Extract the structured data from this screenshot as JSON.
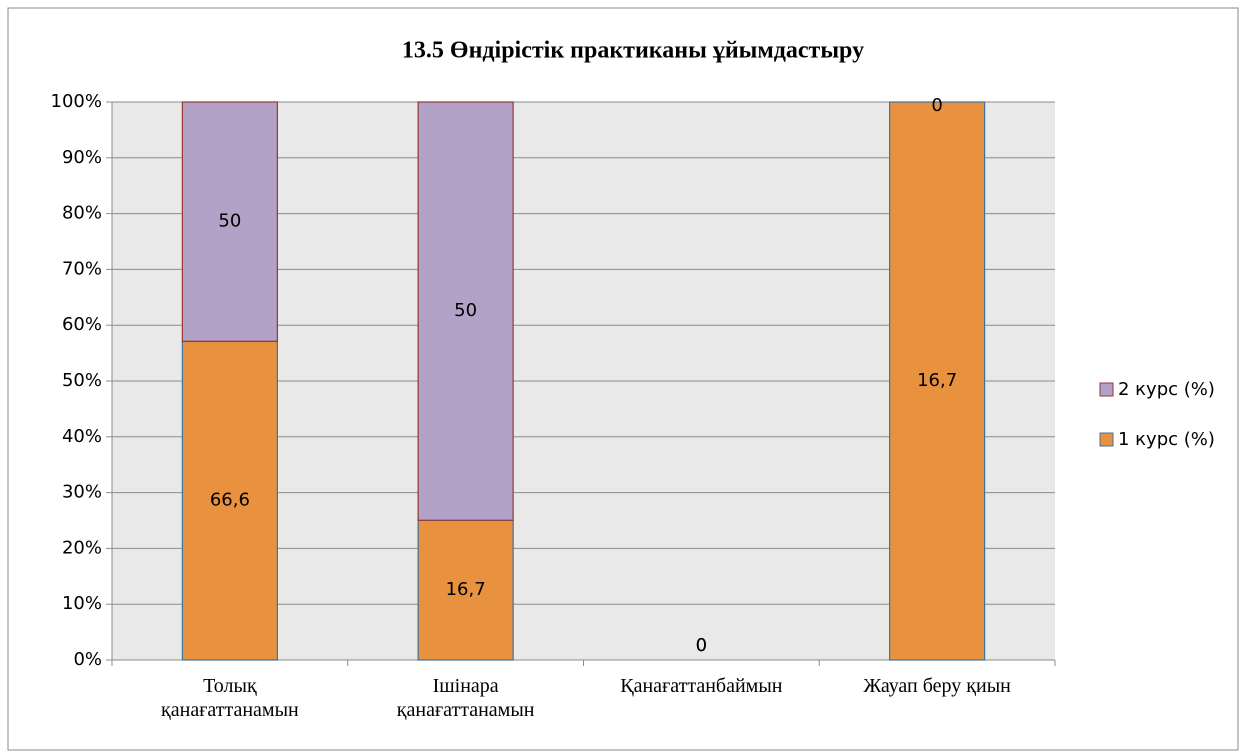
{
  "chart_data": {
    "type": "stacked100",
    "title": "13.5 Өндірістік практиканы ұйымдастыру",
    "categories": [
      "Толық қанағаттанамын",
      "Ішінара қанағаттанамын",
      "Қанағаттанбаймын",
      "Жауап беру қиын"
    ],
    "series": [
      {
        "name": "1 курс (%)",
        "color": "#e8913f",
        "edge": "#41719c",
        "values": [
          66.6,
          16.7,
          0,
          16.7
        ],
        "value_labels": [
          "66,6",
          "16,7",
          "0",
          "16,7"
        ]
      },
      {
        "name": "2 курс (%)",
        "color": "#b3a2c7",
        "edge": "#953735",
        "values": [
          50,
          50,
          0,
          0
        ],
        "value_labels": [
          "50",
          "50",
          "0",
          "0"
        ]
      }
    ],
    "ylim": [
      0,
      100
    ],
    "yticks": [
      {
        "value": 0,
        "label": "0%"
      },
      {
        "value": 10,
        "label": "10%"
      },
      {
        "value": 20,
        "label": "20%"
      },
      {
        "value": 30,
        "label": "30%"
      },
      {
        "value": 40,
        "label": "40%"
      },
      {
        "value": 50,
        "label": "50%"
      },
      {
        "value": 60,
        "label": "60%"
      },
      {
        "value": 70,
        "label": "70%"
      },
      {
        "value": 80,
        "label": "80%"
      },
      {
        "value": 90,
        "label": "90%"
      },
      {
        "value": 100,
        "label": "100%"
      }
    ],
    "grid": true,
    "legend": "right"
  }
}
